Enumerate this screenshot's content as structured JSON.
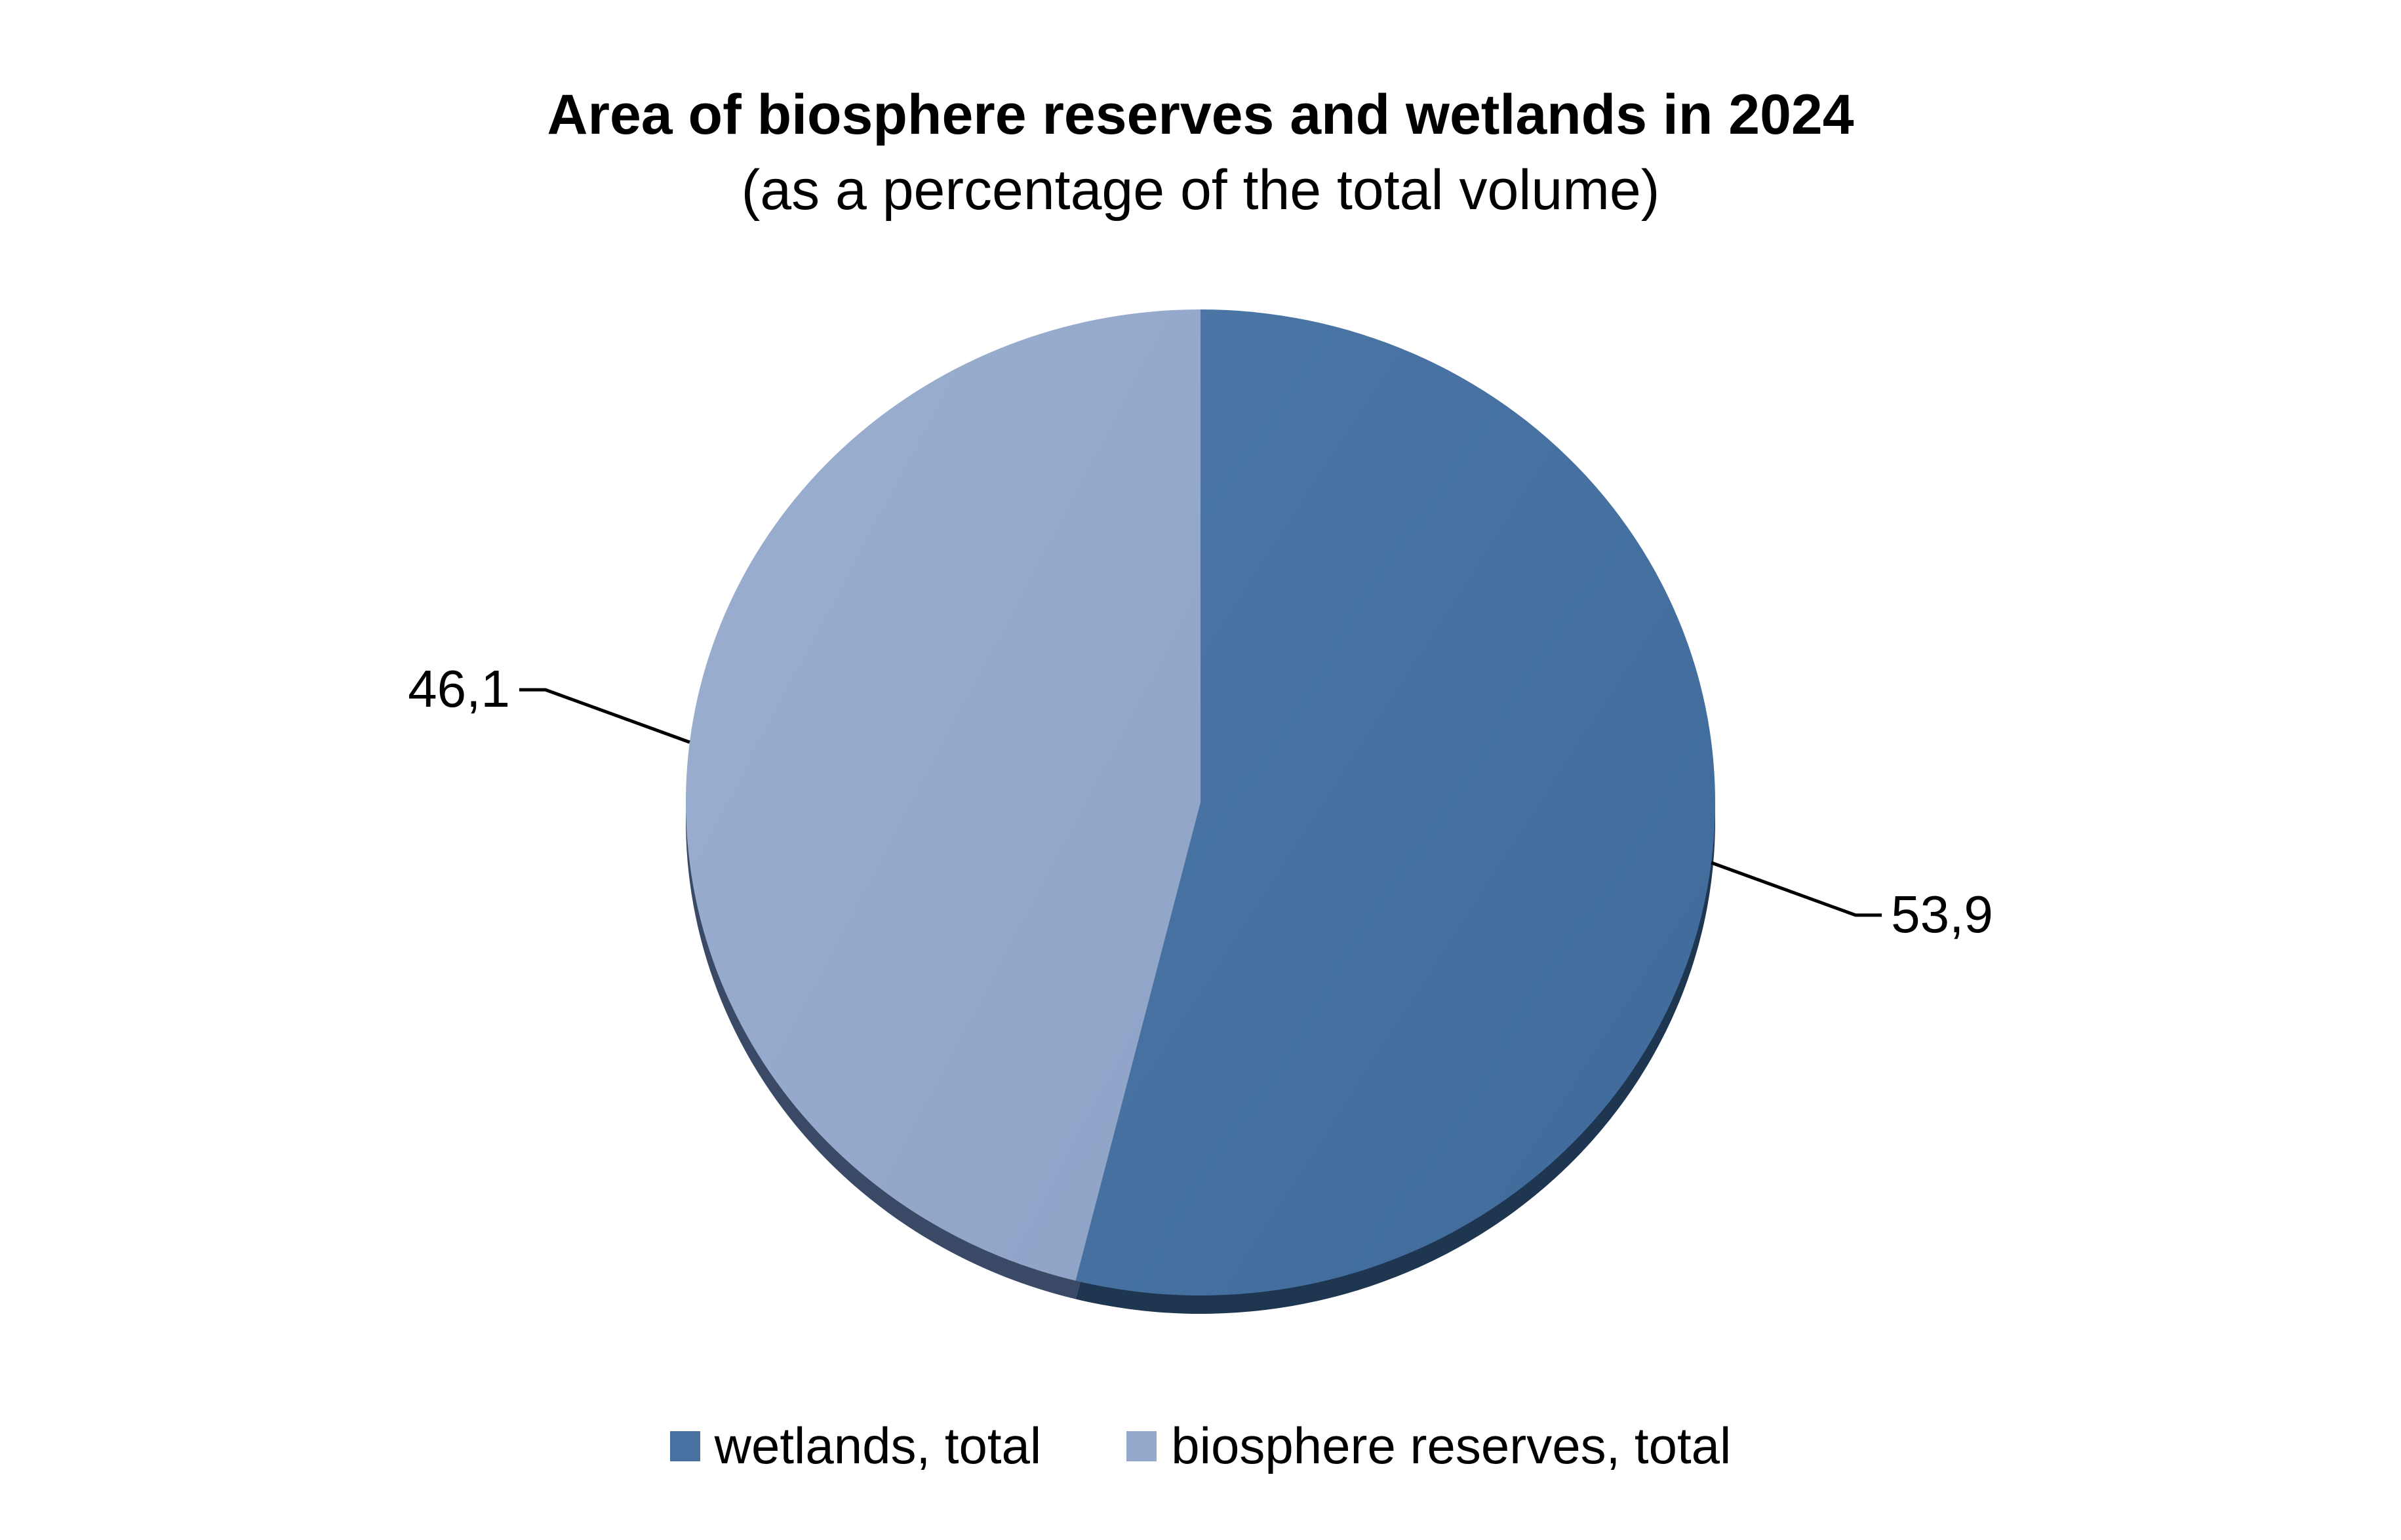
{
  "chart_data": {
    "type": "pie",
    "title": "Area of biosphere reserves and wetlands in 2024",
    "subtitle": "(as a percentage of the total volume)",
    "slices": [
      {
        "name": "wetlands, total",
        "value": 53.9,
        "label": "53,9",
        "color": "#4671A1"
      },
      {
        "name": "biosphere reserves, total",
        "value": 46.1,
        "label": "46,1",
        "color": "#94A9CB"
      }
    ],
    "legend_position": "bottom"
  }
}
